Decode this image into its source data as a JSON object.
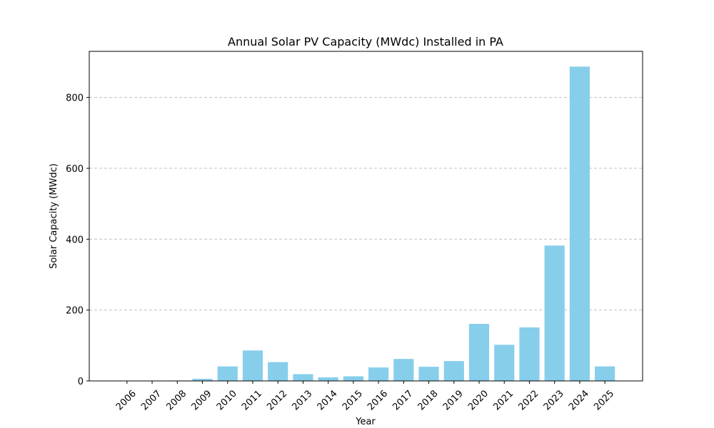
{
  "chart_data": {
    "type": "bar",
    "title": "Annual Solar PV Capacity (MWdc) Installed in PA",
    "xlabel": "Year",
    "ylabel": "Solar Capacity (MWdc)",
    "categories": [
      "2006",
      "2007",
      "2008",
      "2009",
      "2010",
      "2011",
      "2012",
      "2013",
      "2014",
      "2015",
      "2016",
      "2017",
      "2018",
      "2019",
      "2020",
      "2021",
      "2022",
      "2023",
      "2024",
      "2025"
    ],
    "values": [
      0.3,
      0.6,
      1.2,
      6,
      41,
      86,
      53,
      19,
      10,
      13,
      38,
      62,
      40,
      56,
      161,
      102,
      151,
      382,
      887,
      41
    ],
    "ylim": [
      0,
      930
    ],
    "yticks": [
      0,
      200,
      400,
      600,
      800
    ],
    "grid": "y-dashed",
    "bar_color": "#87ceeb"
  }
}
